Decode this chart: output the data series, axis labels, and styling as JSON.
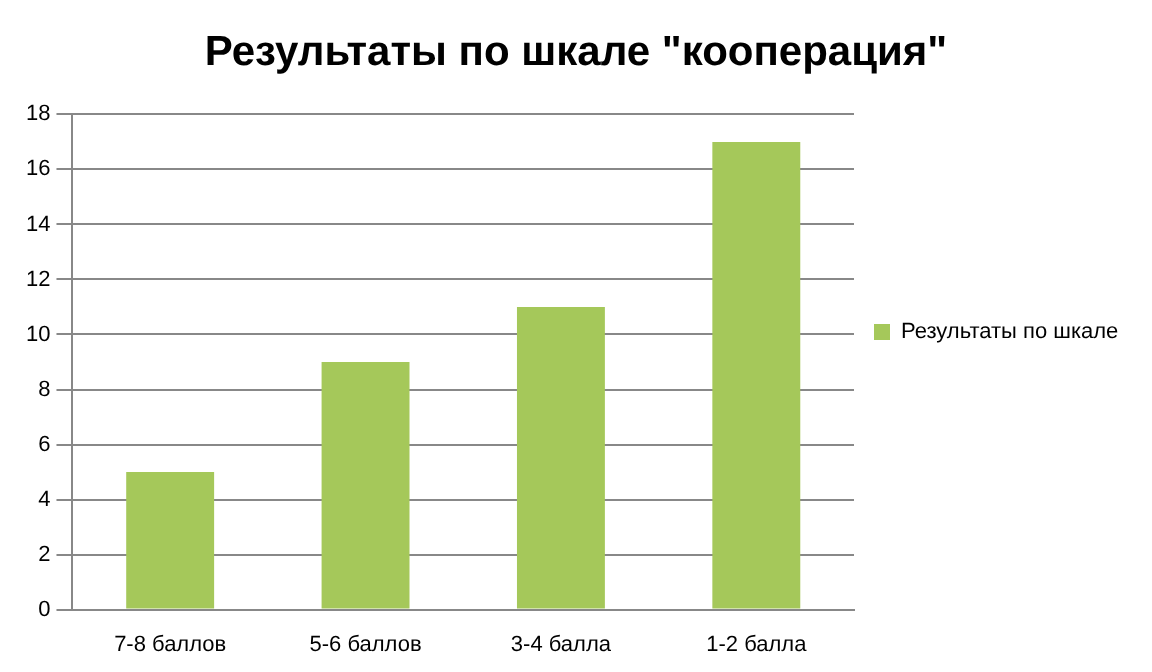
{
  "chart_data": {
    "type": "bar",
    "title": "Результаты по шкале \"кооперация\"",
    "categories": [
      "7-8 баллов",
      "5-6 баллов",
      "3-4 балла",
      "1-2 балла"
    ],
    "series": [
      {
        "name": "Результаты по шкале",
        "color": "#a5c85a",
        "values": [
          5,
          9,
          11,
          17
        ]
      }
    ],
    "ylim": [
      0,
      18
    ],
    "yticks": [
      0,
      2,
      4,
      6,
      8,
      10,
      12,
      14,
      16,
      18
    ],
    "grid": "y",
    "legend": "right"
  }
}
